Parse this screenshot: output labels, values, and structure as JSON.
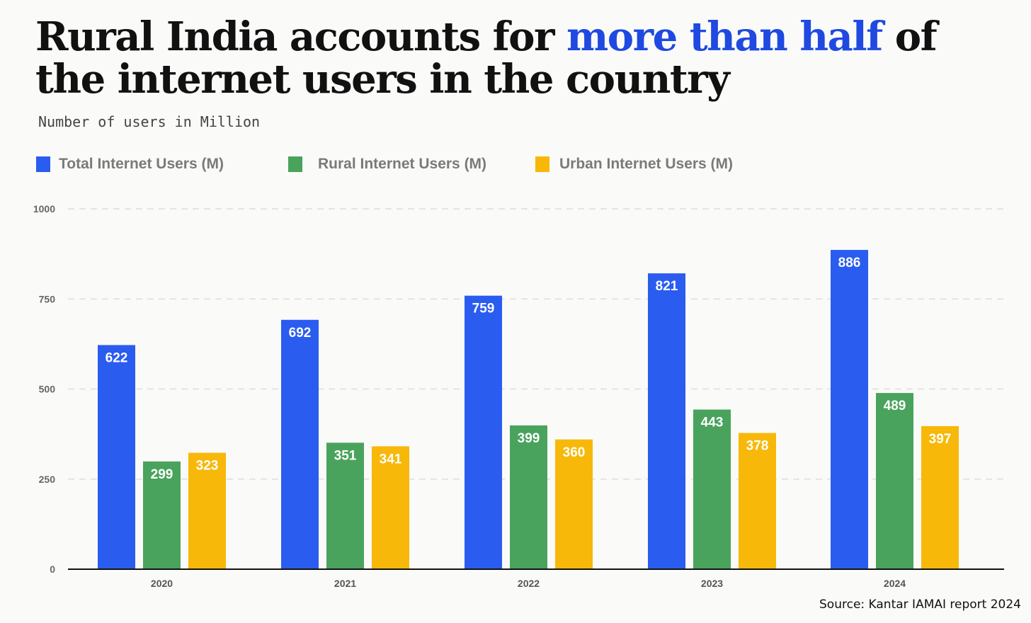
{
  "title": {
    "part1": "Rural India accounts for ",
    "highlight": "more than half",
    "part2": " of the internet users in the country"
  },
  "subtitle": "Number of users in Million",
  "source": "Source: Kantar IAMAI report 2024",
  "colors": {
    "total": "#2a5cf0",
    "rural": "#49a35c",
    "urban": "#f7b809",
    "highlight": "#1f49e0",
    "grid": "#dddddd",
    "axis": "#111111"
  },
  "chart_data": {
    "type": "bar",
    "categories": [
      "2020",
      "2021",
      "2022",
      "2023",
      "2024"
    ],
    "series": [
      {
        "name": "Total Internet Users (M)",
        "color": "#2a5cf0",
        "values": [
          622,
          692,
          759,
          821,
          886
        ]
      },
      {
        "name": "Rural Internet Users (M)",
        "color": "#49a35c",
        "values": [
          299,
          351,
          399,
          443,
          489
        ]
      },
      {
        "name": "Urban Internet Users (M)",
        "color": "#f7b809",
        "values": [
          323,
          341,
          360,
          378,
          397
        ]
      }
    ],
    "yticks": [
      "0",
      "250",
      "500",
      "750",
      "1000"
    ],
    "ylim": [
      0,
      1000
    ],
    "grid": true,
    "legend_position": "top-left",
    "data_labels": true
  }
}
